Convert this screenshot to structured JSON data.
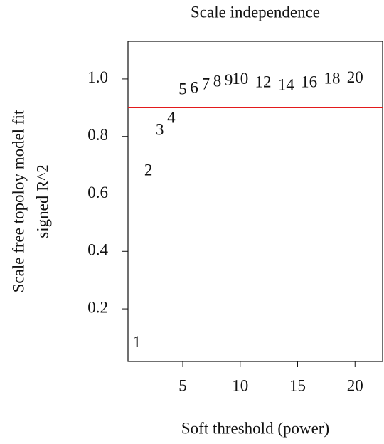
{
  "chart_data": {
    "type": "scatter",
    "marker": "text",
    "title": "Scale independence",
    "xlabel": "Soft threshold (power)",
    "ylabel": [
      "Scale free topoloy model fit",
      "signed R^2"
    ],
    "x": [
      1,
      2,
      3,
      4,
      5,
      6,
      7,
      8,
      9,
      10,
      12,
      14,
      16,
      18,
      20
    ],
    "values": [
      0.079,
      0.678,
      0.819,
      0.861,
      0.96,
      0.965,
      0.977,
      0.987,
      0.99,
      0.995,
      0.985,
      0.975,
      0.985,
      0.997,
      1.0
    ],
    "xlim": [
      0.23,
      22.4
    ],
    "ylim": [
      0.017,
      1.131
    ],
    "xticks": [
      5,
      10,
      15,
      20
    ],
    "yticks": [
      0.2,
      0.4,
      0.6,
      0.8,
      {
        "value": 1,
        "label": "1.0"
      }
    ],
    "hline": 0.9,
    "hline_color": "#e31a1c"
  }
}
